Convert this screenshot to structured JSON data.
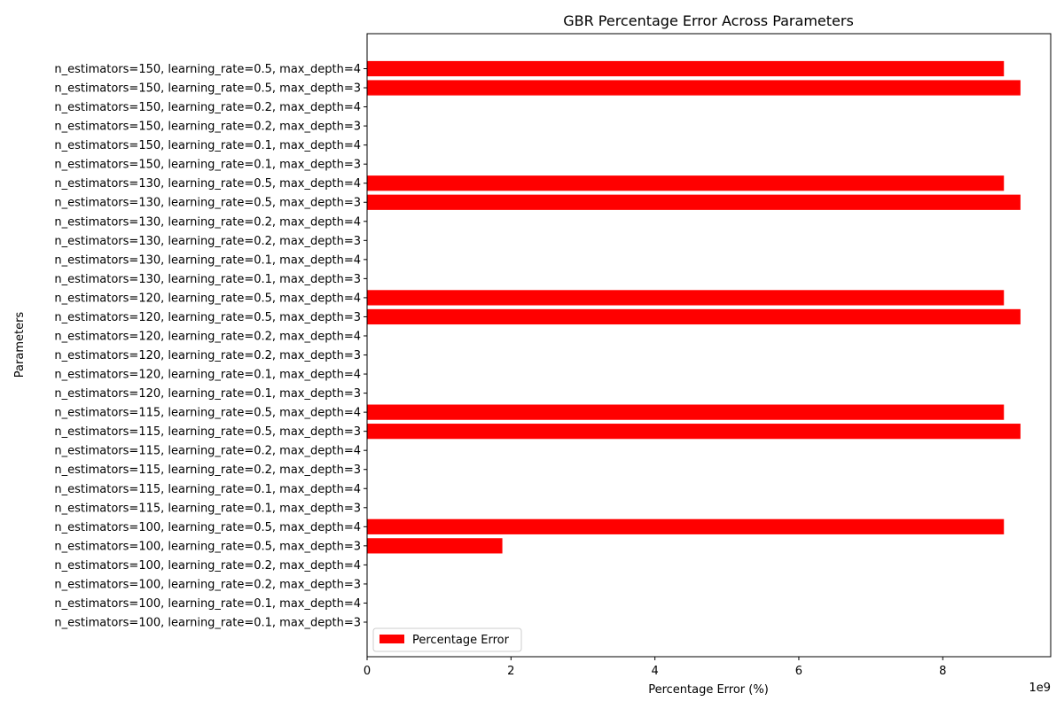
{
  "chart_data": {
    "type": "bar",
    "orientation": "horizontal",
    "title": "GBR Percentage Error Across Parameters",
    "xlabel": "Percentage Error (%)",
    "ylabel": "Parameters",
    "x_offset_label": "1e9",
    "x_scale": 1000000000,
    "xlim": [
      0,
      9500000000
    ],
    "x_ticks": [
      0,
      2,
      4,
      6,
      8
    ],
    "legend": {
      "label": "Percentage Error",
      "placement": "lower-left"
    },
    "bar_color": "#ff0000",
    "grid": false,
    "categories": [
      "n_estimators=100, learning_rate=0.1, max_depth=3",
      "n_estimators=100, learning_rate=0.1, max_depth=4",
      "n_estimators=100, learning_rate=0.2, max_depth=3",
      "n_estimators=100, learning_rate=0.2, max_depth=4",
      "n_estimators=100, learning_rate=0.5, max_depth=3",
      "n_estimators=100, learning_rate=0.5, max_depth=4",
      "n_estimators=115, learning_rate=0.1, max_depth=3",
      "n_estimators=115, learning_rate=0.1, max_depth=4",
      "n_estimators=115, learning_rate=0.2, max_depth=3",
      "n_estimators=115, learning_rate=0.2, max_depth=4",
      "n_estimators=115, learning_rate=0.5, max_depth=3",
      "n_estimators=115, learning_rate=0.5, max_depth=4",
      "n_estimators=120, learning_rate=0.1, max_depth=3",
      "n_estimators=120, learning_rate=0.1, max_depth=4",
      "n_estimators=120, learning_rate=0.2, max_depth=3",
      "n_estimators=120, learning_rate=0.2, max_depth=4",
      "n_estimators=120, learning_rate=0.5, max_depth=3",
      "n_estimators=120, learning_rate=0.5, max_depth=4",
      "n_estimators=130, learning_rate=0.1, max_depth=3",
      "n_estimators=130, learning_rate=0.1, max_depth=4",
      "n_estimators=130, learning_rate=0.2, max_depth=3",
      "n_estimators=130, learning_rate=0.2, max_depth=4",
      "n_estimators=130, learning_rate=0.5, max_depth=3",
      "n_estimators=130, learning_rate=0.5, max_depth=4",
      "n_estimators=150, learning_rate=0.1, max_depth=3",
      "n_estimators=150, learning_rate=0.1, max_depth=4",
      "n_estimators=150, learning_rate=0.2, max_depth=3",
      "n_estimators=150, learning_rate=0.2, max_depth=4",
      "n_estimators=150, learning_rate=0.5, max_depth=3",
      "n_estimators=150, learning_rate=0.5, max_depth=4"
    ],
    "values": [
      0,
      0,
      0,
      0,
      1880000000,
      8850000000,
      0,
      0,
      0,
      0,
      9080000000,
      8850000000,
      0,
      0,
      0,
      0,
      9080000000,
      8850000000,
      0,
      0,
      0,
      0,
      9080000000,
      8850000000,
      0,
      0,
      0,
      0,
      9080000000,
      8850000000
    ]
  }
}
